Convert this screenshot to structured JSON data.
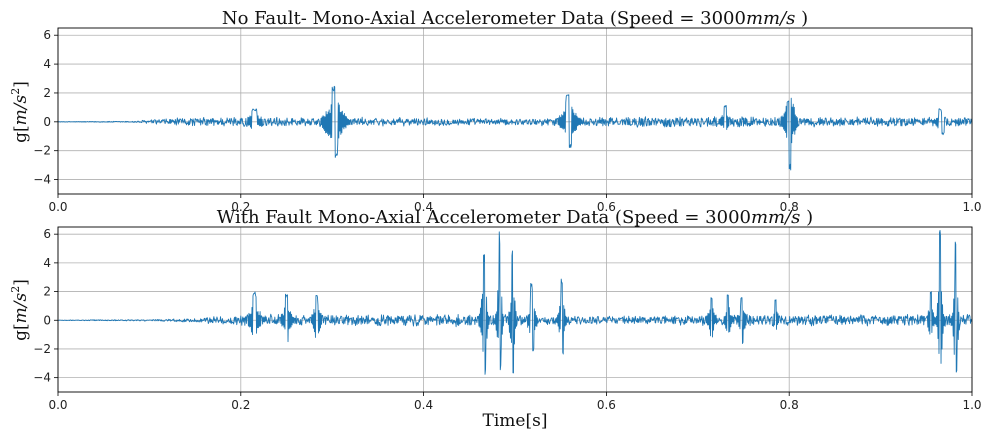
{
  "chart_data": [
    {
      "type": "line",
      "title": "No Fault- Mono-Axial Accelerometer Data (Speed = 3000mm/s )",
      "title_parts": {
        "prefix": "No Fault- Mono-Axial Accelerometer Data (Speed = 3000",
        "unit": "mm/s",
        "suffix": " )"
      },
      "xlabel": "",
      "ylabel": "g[m/s²]",
      "ylabel_parts": {
        "prefix": "g[",
        "unit": "m/s",
        "sup": "2",
        "suffix": "]"
      },
      "xlim": [
        0.0,
        1.0
      ],
      "ylim": [
        -5,
        6.5
      ],
      "xticks": [
        "0.0",
        "0.2",
        "0.4",
        "0.6",
        "0.8",
        "1.0"
      ],
      "yticks": [
        "−4",
        "−2",
        "0",
        "2",
        "4",
        "6"
      ],
      "grid": true,
      "series_color": "#1f77b4",
      "noise_segments": [
        {
          "x": 0.0,
          "amp": 0.02
        },
        {
          "x": 0.08,
          "amp": 0.05
        },
        {
          "x": 0.12,
          "amp": 0.28
        },
        {
          "x": 0.2,
          "amp": 0.4
        },
        {
          "x": 0.35,
          "amp": 0.32
        },
        {
          "x": 0.5,
          "amp": 0.25
        },
        {
          "x": 0.6,
          "amp": 0.38
        },
        {
          "x": 0.7,
          "amp": 0.42
        },
        {
          "x": 0.85,
          "amp": 0.35
        },
        {
          "x": 1.0,
          "amp": 0.38
        }
      ],
      "bursts": [
        {
          "x": 0.215,
          "amp": 0.9,
          "width": 0.012
        },
        {
          "x": 0.302,
          "amp": 2.5,
          "width": 0.012
        },
        {
          "x": 0.304,
          "amp": -2.6,
          "width": 0.01
        },
        {
          "x": 0.558,
          "amp": 1.9,
          "width": 0.01
        },
        {
          "x": 0.56,
          "amp": -1.8,
          "width": 0.01
        },
        {
          "x": 0.73,
          "amp": 1.2,
          "width": 0.006
        },
        {
          "x": 0.8,
          "amp": 1.6,
          "width": 0.01
        },
        {
          "x": 0.801,
          "amp": -3.4,
          "width": 0.006
        },
        {
          "x": 0.965,
          "amp": 0.9,
          "width": 0.006
        },
        {
          "x": 0.968,
          "amp": -0.9,
          "width": 0.006
        }
      ]
    },
    {
      "type": "line",
      "title": "With Fault Mono-Axial Accelerometer Data (Speed = 3000mm/s )",
      "title_parts": {
        "prefix": "With Fault Mono-Axial Accelerometer Data (Speed = 3000",
        "unit": "mm/s",
        "suffix": " )"
      },
      "xlabel": "Time[s]",
      "ylabel": "g[m/s²]",
      "ylabel_parts": {
        "prefix": "g[",
        "unit": "m/s",
        "sup": "2",
        "suffix": "]"
      },
      "xlim": [
        0.0,
        1.0
      ],
      "ylim": [
        -5,
        6.5
      ],
      "xticks": [
        "0.0",
        "0.2",
        "0.4",
        "0.6",
        "0.8",
        "1.0"
      ],
      "yticks": [
        "−4",
        "−2",
        "0",
        "2",
        "4",
        "6"
      ],
      "grid": true,
      "series_color": "#1f77b4",
      "noise_segments": [
        {
          "x": 0.0,
          "amp": 0.02
        },
        {
          "x": 0.1,
          "amp": 0.06
        },
        {
          "x": 0.15,
          "amp": 0.15
        },
        {
          "x": 0.2,
          "amp": 0.45
        },
        {
          "x": 0.3,
          "amp": 0.4
        },
        {
          "x": 0.45,
          "amp": 0.5
        },
        {
          "x": 0.55,
          "amp": 0.35
        },
        {
          "x": 0.65,
          "amp": 0.3
        },
        {
          "x": 0.75,
          "amp": 0.45
        },
        {
          "x": 0.9,
          "amp": 0.4
        },
        {
          "x": 1.0,
          "amp": 0.5
        }
      ],
      "bursts": [
        {
          "x": 0.215,
          "amp": 2.0,
          "width": 0.008
        },
        {
          "x": 0.216,
          "amp": -1.5,
          "width": 0.006
        },
        {
          "x": 0.25,
          "amp": 1.9,
          "width": 0.006
        },
        {
          "x": 0.251,
          "amp": -1.6,
          "width": 0.006
        },
        {
          "x": 0.283,
          "amp": 1.8,
          "width": 0.006
        },
        {
          "x": 0.466,
          "amp": 4.8,
          "width": 0.004
        },
        {
          "x": 0.467,
          "amp": -3.8,
          "width": 0.004
        },
        {
          "x": 0.483,
          "amp": 6.2,
          "width": 0.003
        },
        {
          "x": 0.484,
          "amp": -3.5,
          "width": 0.003
        },
        {
          "x": 0.497,
          "amp": 4.9,
          "width": 0.003
        },
        {
          "x": 0.498,
          "amp": -3.9,
          "width": 0.003
        },
        {
          "x": 0.518,
          "amp": 2.7,
          "width": 0.004
        },
        {
          "x": 0.52,
          "amp": -2.2,
          "width": 0.004
        },
        {
          "x": 0.551,
          "amp": 3.0,
          "width": 0.004
        },
        {
          "x": 0.552,
          "amp": -2.5,
          "width": 0.004
        },
        {
          "x": 0.715,
          "amp": 1.7,
          "width": 0.005
        },
        {
          "x": 0.733,
          "amp": 1.9,
          "width": 0.004
        },
        {
          "x": 0.748,
          "amp": 1.7,
          "width": 0.004
        },
        {
          "x": 0.749,
          "amp": -1.7,
          "width": 0.004
        },
        {
          "x": 0.785,
          "amp": 1.5,
          "width": 0.004
        },
        {
          "x": 0.955,
          "amp": 2.0,
          "width": 0.004
        },
        {
          "x": 0.965,
          "amp": 6.5,
          "width": 0.003
        },
        {
          "x": 0.966,
          "amp": -2.6,
          "width": 0.003
        },
        {
          "x": 0.982,
          "amp": 5.6,
          "width": 0.003
        },
        {
          "x": 0.983,
          "amp": -3.9,
          "width": 0.003
        }
      ]
    }
  ]
}
